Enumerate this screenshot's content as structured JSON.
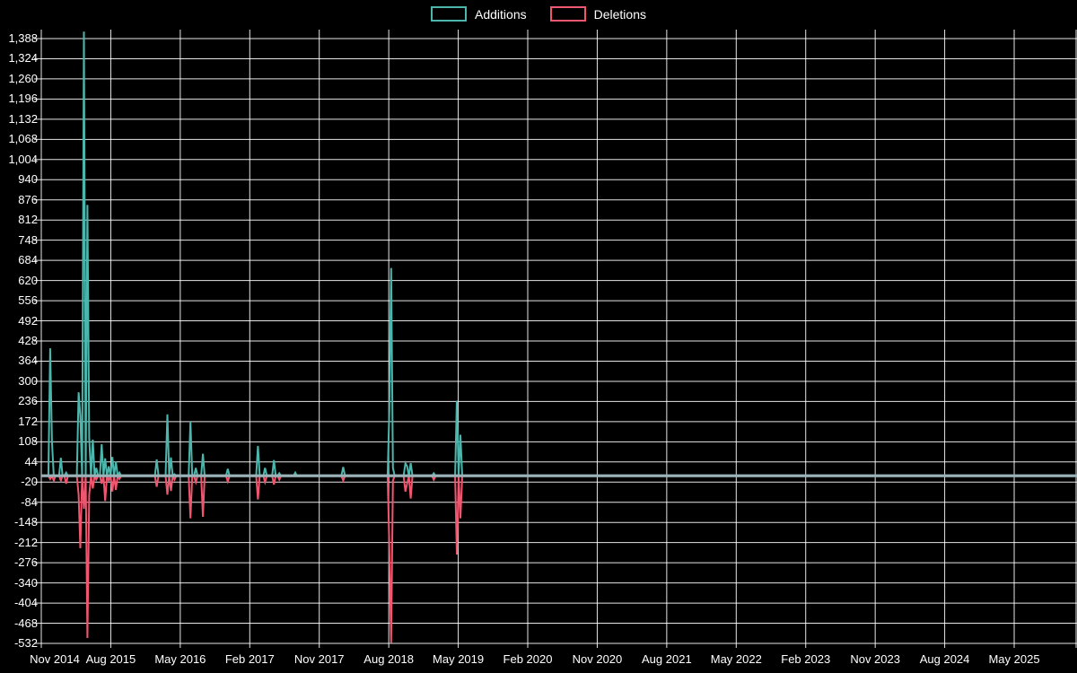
{
  "colors": {
    "background": "#000000",
    "grid": "#ffffff",
    "text": "#ffffff",
    "additions": "#4db6ac",
    "deletions": "#ef5670",
    "zero_line": "#9bb3b8"
  },
  "legend": [
    {
      "label": "Additions",
      "color": "#4db6ac"
    },
    {
      "label": "Deletions",
      "color": "#ef5670"
    }
  ],
  "chart_data": {
    "type": "line",
    "title": "",
    "xlabel": "",
    "ylabel": "",
    "x_unit": "weeks since Nov 2014",
    "weeks_total": 583,
    "x_tick_labels": [
      "Nov 2014",
      "Aug 2015",
      "May 2016",
      "Feb 2017",
      "Nov 2017",
      "Aug 2018",
      "May 2019",
      "Feb 2020",
      "Nov 2020",
      "Aug 2021",
      "May 2022",
      "Feb 2023",
      "Nov 2023",
      "Aug 2024",
      "May 2025"
    ],
    "y_tick_values": [
      1388,
      1324,
      1260,
      1196,
      1132,
      1068,
      1004,
      940,
      876,
      812,
      748,
      684,
      620,
      556,
      492,
      428,
      364,
      300,
      236,
      172,
      108,
      44,
      -20,
      -84,
      -148,
      -212,
      -276,
      -340,
      -404,
      -468,
      -532
    ],
    "y_tick_labels": [
      "1,388",
      "1,324",
      "1,260",
      "1,196",
      "1,132",
      "1,068",
      "1,004",
      "940",
      "876",
      "812",
      "748",
      "684",
      "620",
      "556",
      "492",
      "428",
      "364",
      "300",
      "236",
      "172",
      "108",
      "44",
      "-20",
      "-84",
      "-148",
      "-212",
      "-276",
      "-340",
      "-404",
      "-468",
      "-532"
    ],
    "ylim": [
      -540,
      1416
    ],
    "baseline_value": 0,
    "grid": true,
    "legend_position": "top-center",
    "series": [
      {
        "name": "Additions",
        "color": "#4db6ac",
        "points": [
          [
            5,
            405
          ],
          [
            6,
            108
          ],
          [
            11,
            57
          ],
          [
            14,
            10
          ],
          [
            21,
            265
          ],
          [
            22,
            190
          ],
          [
            24,
            1410
          ],
          [
            26,
            860
          ],
          [
            27,
            120
          ],
          [
            29,
            115
          ],
          [
            31,
            25
          ],
          [
            34,
            100
          ],
          [
            36,
            55
          ],
          [
            38,
            30
          ],
          [
            40,
            60
          ],
          [
            42,
            45
          ],
          [
            44,
            10
          ],
          [
            65,
            52
          ],
          [
            71,
            195
          ],
          [
            73,
            58
          ],
          [
            75,
            5
          ],
          [
            84,
            172
          ],
          [
            87,
            25
          ],
          [
            91,
            70
          ],
          [
            105,
            22
          ],
          [
            122,
            95
          ],
          [
            126,
            25
          ],
          [
            131,
            50
          ],
          [
            134,
            8
          ],
          [
            143,
            10
          ],
          [
            170,
            28
          ],
          [
            196,
            210
          ],
          [
            197,
            660
          ],
          [
            198,
            25
          ],
          [
            205,
            40
          ],
          [
            206,
            30
          ],
          [
            208,
            40
          ],
          [
            221,
            8
          ],
          [
            234,
            238
          ],
          [
            236,
            130
          ]
        ]
      },
      {
        "name": "Deletions",
        "color": "#ef5670",
        "points": [
          [
            5,
            -10
          ],
          [
            7,
            -15
          ],
          [
            11,
            -15
          ],
          [
            14,
            -25
          ],
          [
            21,
            -60
          ],
          [
            22,
            -230
          ],
          [
            24,
            -105
          ],
          [
            26,
            -515
          ],
          [
            27,
            -60
          ],
          [
            29,
            -40
          ],
          [
            31,
            -12
          ],
          [
            34,
            -25
          ],
          [
            36,
            -80
          ],
          [
            38,
            -15
          ],
          [
            40,
            -50
          ],
          [
            42,
            -45
          ],
          [
            44,
            -10
          ],
          [
            65,
            -35
          ],
          [
            71,
            -60
          ],
          [
            73,
            -48
          ],
          [
            75,
            -12
          ],
          [
            84,
            -135
          ],
          [
            87,
            -20
          ],
          [
            91,
            -130
          ],
          [
            105,
            -18
          ],
          [
            122,
            -75
          ],
          [
            126,
            -20
          ],
          [
            131,
            -28
          ],
          [
            134,
            -12
          ],
          [
            170,
            -15
          ],
          [
            196,
            -225
          ],
          [
            197,
            -530
          ],
          [
            198,
            -15
          ],
          [
            205,
            -50
          ],
          [
            206,
            -25
          ],
          [
            208,
            -72
          ],
          [
            221,
            -12
          ],
          [
            234,
            -250
          ],
          [
            236,
            -135
          ]
        ]
      }
    ]
  }
}
